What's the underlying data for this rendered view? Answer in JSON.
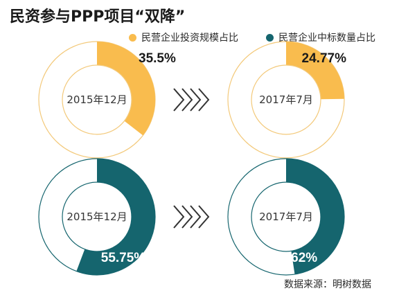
{
  "title": "民资参与PPP项目“双降”",
  "source": "数据来源：明树数据",
  "colors": {
    "orange": "#F9BC4E",
    "teal": "#15656E",
    "orange_ring_outline": "#F3C97A",
    "arrow": "#333333"
  },
  "chart_data": [
    {
      "type": "pie",
      "series_name": "民营企业投资规模占比",
      "center_label": "2015年12月",
      "value": 35.5,
      "value_label": "35.5%",
      "color": "#F9BC4E"
    },
    {
      "type": "pie",
      "series_name": "民营企业投资规模占比",
      "center_label": "2017年7月",
      "value": 24.77,
      "value_label": "24.77%",
      "color": "#F9BC4E"
    },
    {
      "type": "pie",
      "series_name": "民营企业中标数量占比",
      "center_label": "2015年12月",
      "value": 55.75,
      "value_label": "55.75%",
      "color": "#15656E"
    },
    {
      "type": "pie",
      "series_name": "民营企业中标数量占比",
      "center_label": "2017年7月",
      "value": 47.62,
      "value_label": "47.62%",
      "color": "#15656E"
    }
  ],
  "legend": [
    {
      "label": "民营企业投资规模占比",
      "color": "#F9BC4E"
    },
    {
      "label": "民营企业中标数量占比",
      "color": "#15656E"
    }
  ]
}
